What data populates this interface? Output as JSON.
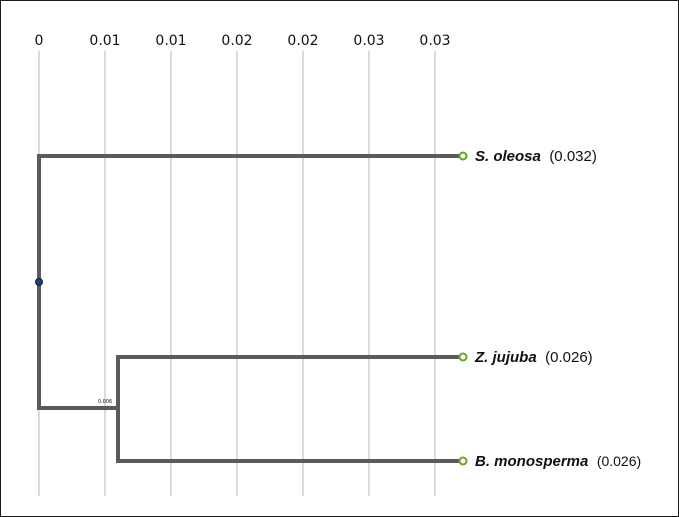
{
  "axis": {
    "ticks": [
      "0",
      "0.01",
      "0.01",
      "0.02",
      "0.02",
      "0.03",
      "0.03"
    ]
  },
  "tree": {
    "leaves": [
      {
        "name": "S. oleosa",
        "distance": "(0.032)"
      },
      {
        "name": "Z. jujuba",
        "distance": "(0.026)"
      },
      {
        "name": "B. monosperma",
        "distance": "(0.026)"
      }
    ],
    "internal_node_label": "0.006"
  },
  "colors": {
    "branch": "#5a5a5a",
    "gridline": "#c8c8c8",
    "leaf_marker": "#6aa121",
    "root_marker": "#1f3f7a"
  }
}
